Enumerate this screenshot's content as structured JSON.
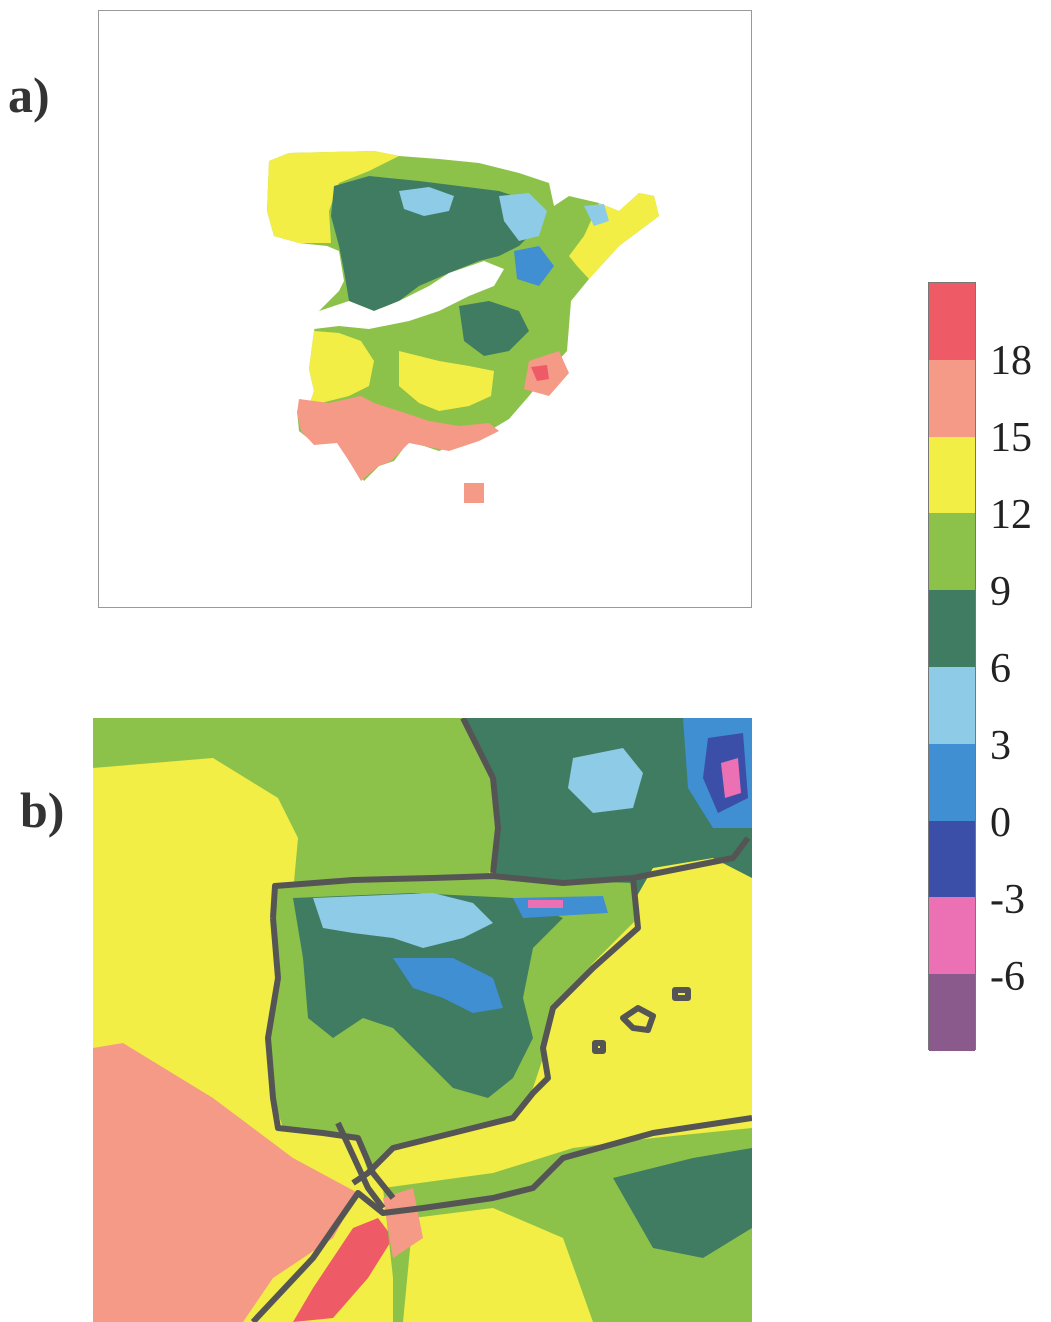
{
  "panels": {
    "a": {
      "label": "a)"
    },
    "b": {
      "label": "b)"
    }
  },
  "colorbar": {
    "ticks": [
      "18",
      "15",
      "12",
      "9",
      "6",
      "3",
      "0",
      "-3",
      "-6"
    ],
    "colors": [
      "#ee5a66",
      "#f59a86",
      "#f3ee45",
      "#8dc24a",
      "#3f7c62",
      "#8ecbe6",
      "#3f8fd2",
      "#3b4ea8",
      "#ec70b4",
      "#8a5a8c"
    ]
  },
  "map_colors": {
    "bin_18_plus": "#ee5a66",
    "bin_15_18": "#f59a86",
    "bin_12_15": "#f3ee45",
    "bin_9_12": "#8dc24a",
    "bin_6_9": "#3f7c62",
    "bin_3_6": "#8ecbe6",
    "bin_0_3": "#3f8fd2",
    "bin_m3_0": "#3b4ea8",
    "bin_m6_m3": "#ec70b4",
    "coastline": "#555555"
  }
}
